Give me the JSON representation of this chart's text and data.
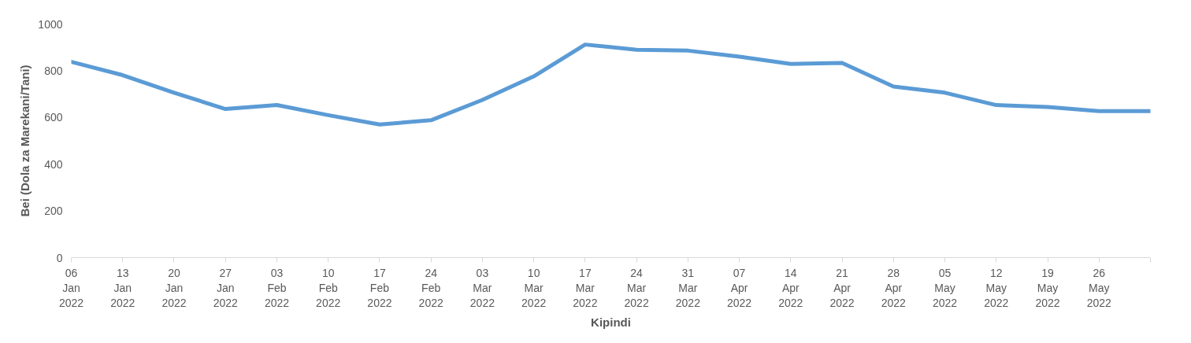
{
  "chart_data": {
    "type": "line",
    "xlabel": "Kipindi",
    "ylabel": "Bei (Dola za Marekani/Tani)",
    "categories": [
      "06 Jan 2022",
      "13 Jan 2022",
      "20 Jan 2022",
      "27 Jan 2022",
      "03 Feb 2022",
      "10 Feb 2022",
      "17 Feb 2022",
      "24 Feb 2022",
      "03 Mar 2022",
      "10 Mar 2022",
      "17 Mar 2022",
      "24 Mar 2022",
      "31 Mar 2022",
      "07 Apr 2022",
      "14 Apr 2022",
      "21 Apr 2022",
      "28 Apr 2022",
      "05 May 2022",
      "12 May 2022",
      "19 May 2022",
      "26 May 2022",
      null
    ],
    "series": [
      {
        "color": "#5b9bd5",
        "values": [
          838,
          781,
          706,
          636,
          653,
          610,
          570,
          588,
          675,
          776,
          912,
          890,
          886,
          860,
          829,
          833,
          732,
          706,
          653,
          645,
          627,
          627
        ]
      }
    ],
    "ylim": [
      0,
      1000
    ],
    "yticks": [
      0,
      200,
      400,
      600,
      800,
      1000
    ],
    "grid": false,
    "marker": "none",
    "line_style": "solid"
  }
}
